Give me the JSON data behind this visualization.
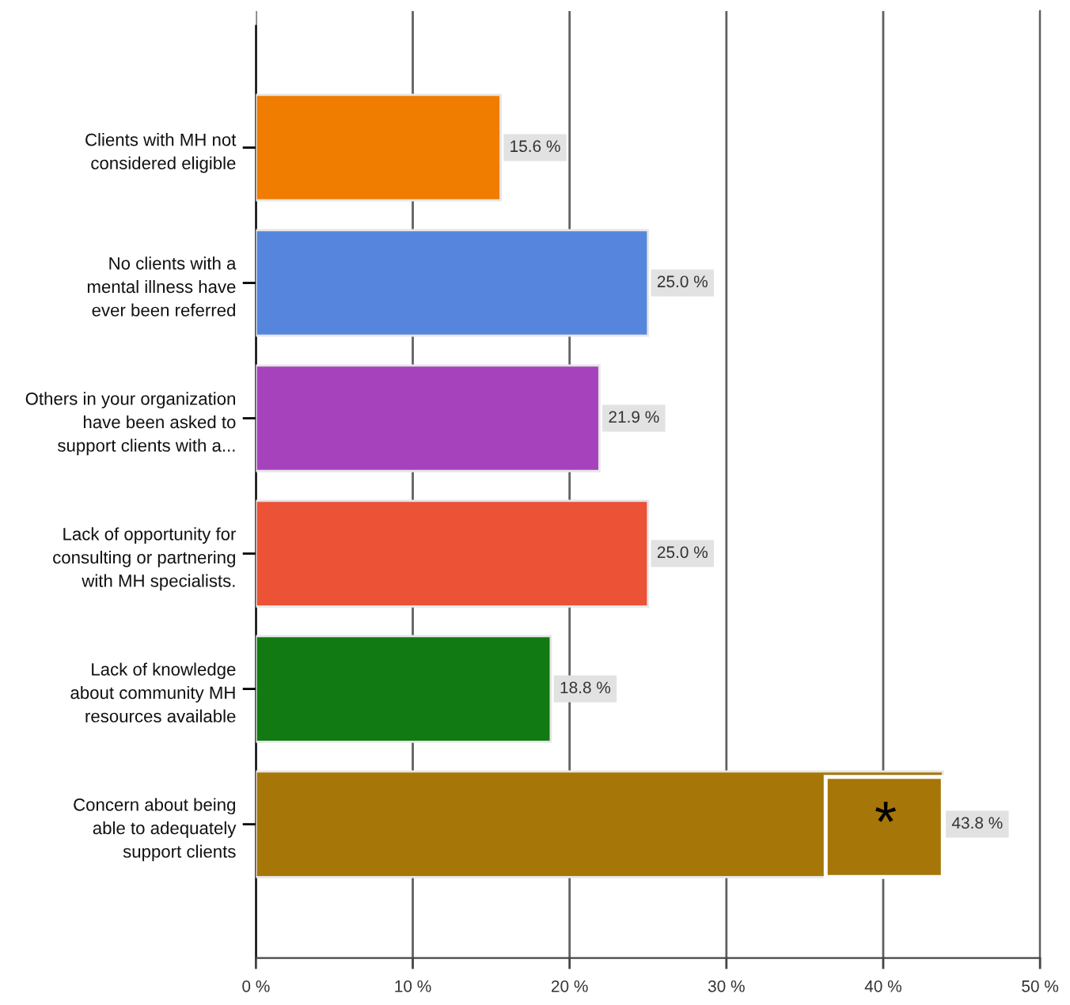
{
  "chart_data": {
    "type": "bar",
    "orientation": "horizontal",
    "categories": [
      "Clients with MH not\nconsidered eligible",
      "No clients with a\nmental illness have\never been referred",
      "Others in your organization\nhave been asked to\nsupport clients with a...",
      "Lack of opportunity for\nconsulting or partnering\nwith MH specialists.",
      "Lack of knowledge\nabout community MH\nresources available",
      "Concern about being\nable to adequately\nsupport clients"
    ],
    "values": [
      15.6,
      25.0,
      21.9,
      25.0,
      18.8,
      43.8
    ],
    "colors": [
      "#f07c00",
      "#5585dc",
      "#a742bd",
      "#ec5236",
      "#127a12",
      "#a77608"
    ],
    "value_labels": [
      "15.6 %",
      "25.0 %",
      "21.9 %",
      "25.0 %",
      "18.8 %",
      "43.8 %"
    ],
    "xlim": [
      0,
      50
    ],
    "xticks": [
      {
        "value": 0,
        "label": "0 %"
      },
      {
        "value": 10,
        "label": "10 %"
      },
      {
        "value": 20,
        "label": "20 %"
      },
      {
        "value": 30,
        "label": "30 %"
      },
      {
        "value": 40,
        "label": "40 %"
      },
      {
        "value": 50,
        "label": "50 %"
      }
    ],
    "grid": "x",
    "annotations": [
      {
        "text": "*",
        "x": 43.8,
        "y": "Concern about being\nable to adequately\nsupport clients"
      }
    ]
  }
}
